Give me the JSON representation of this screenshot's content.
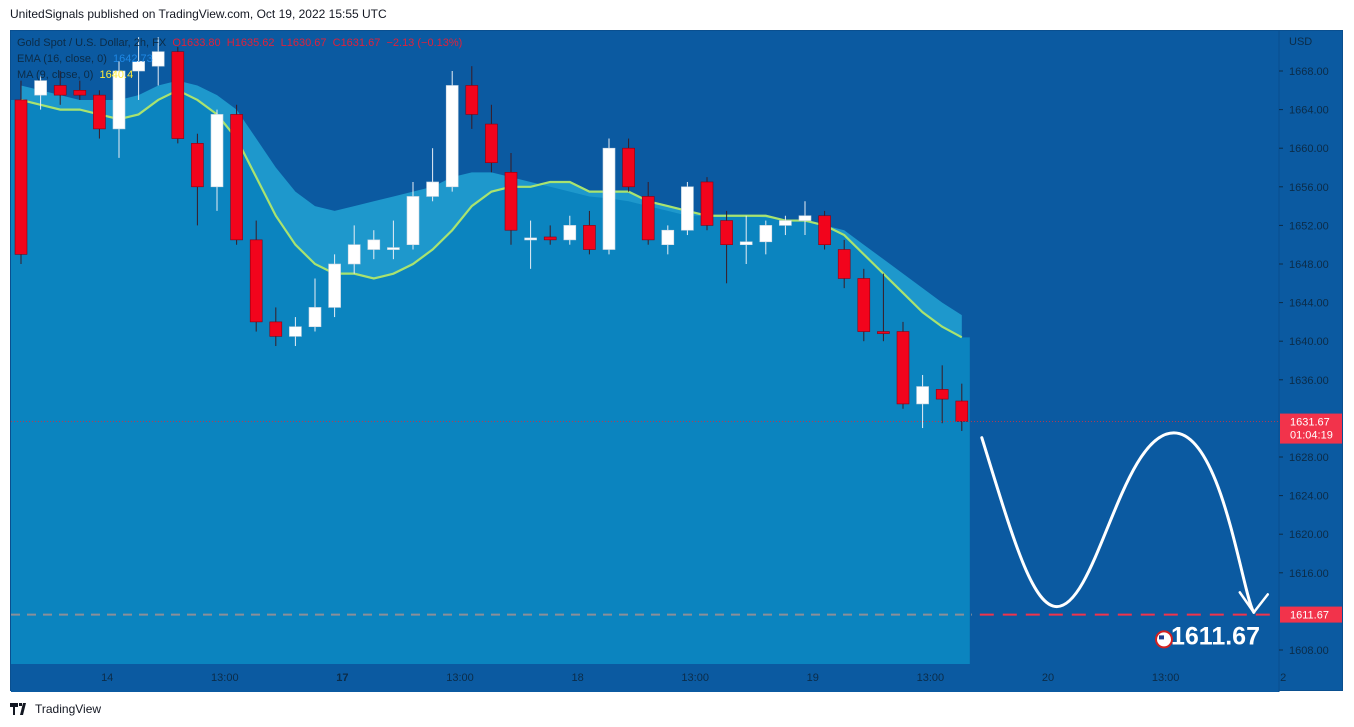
{
  "header": {
    "published_by": "UnitedSignals published on TradingView.com, Oct 19, 2022 15:55 UTC"
  },
  "legend": {
    "symbol": "Gold Spot / U.S. Dollar, 2h, FX",
    "open": "O1633.80",
    "high": "H1635.62",
    "low": "L1630.67",
    "close": "C1631.67",
    "change": "−2.13 (−0.13%)",
    "ema_label": "EMA (16, close, 0)",
    "ema_value": "1642.73",
    "ma_label": "MA (9, close, 0)",
    "ma_value": "1640.4"
  },
  "footer": {
    "brand": "TradingView"
  },
  "colors": {
    "background": "#0b5aa1",
    "area_fill": "#0b84bf",
    "band": "#1e98cc",
    "up_candle": "#ffffff",
    "down_candle": "#f2041c",
    "ma_line": "#a9e36f",
    "axis_text": "#0c2c48",
    "price_tag": "#f2334b",
    "annotation": "#ffffff"
  },
  "chart_data": {
    "type": "candlestick",
    "currency": "USD",
    "ylim": [
      1605.5,
      1673.0
    ],
    "y_ticks": [
      1608.0,
      1612.0,
      1616.0,
      1620.0,
      1624.0,
      1628.0,
      1632.0,
      1636.0,
      1640.0,
      1644.0,
      1648.0,
      1652.0,
      1656.0,
      1660.0,
      1664.0,
      1668.0
    ],
    "y_tick_labels": [
      "1608.00",
      "1616.00",
      "1620.00",
      "1624.00",
      "1628.00",
      "1636.00",
      "1640.00",
      "1644.00",
      "1648.00",
      "1652.00",
      "1656.00",
      "1660.00",
      "1664.00",
      "1668.00"
    ],
    "x_ticks": [
      {
        "bar": 4.5,
        "label": "14",
        "bold": false
      },
      {
        "bar": 10.5,
        "label": "13:00",
        "bold": false
      },
      {
        "bar": 16.5,
        "label": "17",
        "bold": true
      },
      {
        "bar": 22.5,
        "label": "13:00",
        "bold": false
      },
      {
        "bar": 28.5,
        "label": "18",
        "bold": false
      },
      {
        "bar": 34.5,
        "label": "13:00",
        "bold": false
      },
      {
        "bar": 40.5,
        "label": "19",
        "bold": false
      },
      {
        "bar": 46.5,
        "label": "13:00",
        "bold": false
      },
      {
        "bar": 52.5,
        "label": "20",
        "bold": false
      },
      {
        "bar": 58.5,
        "label": "13:00",
        "bold": false
      },
      {
        "bar": 64.5,
        "label": "2",
        "bold": false
      }
    ],
    "candles": [
      [
        1665.0,
        1667.0,
        1648.0,
        1649.0
      ],
      [
        1665.5,
        1667.5,
        1664.0,
        1667.0
      ],
      [
        1666.5,
        1668.0,
        1664.5,
        1665.5
      ],
      [
        1666.0,
        1667.0,
        1665.0,
        1665.5
      ],
      [
        1665.5,
        1666.0,
        1661.0,
        1662.0
      ],
      [
        1662.0,
        1669.0,
        1659.0,
        1668.0
      ],
      [
        1668.0,
        1671.5,
        1665.0,
        1669.0
      ],
      [
        1668.5,
        1671.5,
        1666.5,
        1670.0
      ],
      [
        1670.0,
        1670.5,
        1660.5,
        1661.0
      ],
      [
        1660.5,
        1661.5,
        1652.0,
        1656.0
      ],
      [
        1656.0,
        1664.0,
        1653.5,
        1663.5
      ],
      [
        1663.5,
        1664.5,
        1650.0,
        1650.5
      ],
      [
        1650.5,
        1652.5,
        1641.0,
        1642.0
      ],
      [
        1642.0,
        1643.5,
        1639.5,
        1640.5
      ],
      [
        1640.5,
        1642.5,
        1639.5,
        1641.5
      ],
      [
        1641.5,
        1646.5,
        1641.0,
        1643.5
      ],
      [
        1643.5,
        1649.0,
        1642.5,
        1648.0
      ],
      [
        1648.0,
        1652.0,
        1647.0,
        1650.0
      ],
      [
        1649.5,
        1651.5,
        1648.5,
        1650.5
      ],
      [
        1649.5,
        1652.5,
        1648.5,
        1649.7
      ],
      [
        1650.0,
        1656.5,
        1649.5,
        1655.0
      ],
      [
        1655.0,
        1660.0,
        1654.5,
        1656.5
      ],
      [
        1656.0,
        1668.0,
        1655.5,
        1666.5
      ],
      [
        1666.5,
        1668.5,
        1662.0,
        1663.5
      ],
      [
        1662.5,
        1664.5,
        1657.5,
        1658.5
      ],
      [
        1657.5,
        1659.5,
        1650.0,
        1651.5
      ],
      [
        1650.5,
        1652.5,
        1647.5,
        1650.7
      ],
      [
        1650.8,
        1652.0,
        1650.0,
        1650.5
      ],
      [
        1650.5,
        1653.0,
        1650.0,
        1652.0
      ],
      [
        1652.0,
        1653.5,
        1649.0,
        1649.5
      ],
      [
        1649.5,
        1661.0,
        1649.0,
        1660.0
      ],
      [
        1660.0,
        1661.0,
        1655.5,
        1656.0
      ],
      [
        1655.0,
        1656.5,
        1650.0,
        1650.5
      ],
      [
        1650.0,
        1652.0,
        1649.0,
        1651.5
      ],
      [
        1651.5,
        1656.5,
        1651.0,
        1656.0
      ],
      [
        1656.5,
        1657.0,
        1651.5,
        1652.0
      ],
      [
        1652.5,
        1653.5,
        1646.0,
        1650.0
      ],
      [
        1650.0,
        1653.0,
        1648.0,
        1650.3
      ],
      [
        1650.3,
        1652.5,
        1649.0,
        1652.0
      ],
      [
        1652.0,
        1653.0,
        1651.0,
        1652.5
      ],
      [
        1652.5,
        1654.5,
        1651.0,
        1653.0
      ],
      [
        1653.0,
        1653.5,
        1649.5,
        1650.0
      ],
      [
        1649.5,
        1650.5,
        1645.5,
        1646.5
      ],
      [
        1646.5,
        1647.5,
        1640.0,
        1641.0
      ],
      [
        1641.0,
        1647.0,
        1640.0,
        1640.8
      ],
      [
        1641.0,
        1642.0,
        1633.0,
        1633.5
      ],
      [
        1633.5,
        1636.5,
        1631.0,
        1635.3
      ],
      [
        1635.0,
        1637.5,
        1631.5,
        1634.0
      ],
      [
        1633.8,
        1635.6,
        1630.7,
        1631.7
      ]
    ],
    "ma_line": [
      1665.0,
      1664.5,
      1664.0,
      1664.0,
      1663.5,
      1663.0,
      1663.5,
      1665.0,
      1666.0,
      1665.0,
      1663.5,
      1661.0,
      1657.0,
      1653.0,
      1650.0,
      1648.0,
      1647.0,
      1647.0,
      1646.5,
      1647.0,
      1648.0,
      1649.5,
      1651.5,
      1654.0,
      1655.5,
      1656.0,
      1656.0,
      1656.5,
      1656.5,
      1655.5,
      1655.5,
      1655.5,
      1654.5,
      1654.0,
      1653.5,
      1653.0,
      1653.0,
      1653.0,
      1653.0,
      1652.5,
      1652.5,
      1652.0,
      1651.0,
      1649.0,
      1647.0,
      1645.0,
      1643.0,
      1641.5,
      1640.4
    ],
    "band_upper": [
      1666.5,
      1666.0,
      1665.5,
      1665.0,
      1665.0,
      1665.0,
      1665.5,
      1666.5,
      1667.0,
      1666.5,
      1665.5,
      1664.0,
      1661.0,
      1658.0,
      1655.5,
      1654.0,
      1653.5,
      1654.0,
      1654.5,
      1655.0,
      1655.5,
      1656.0,
      1657.0,
      1657.5,
      1657.5,
      1657.0,
      1656.5,
      1656.0,
      1655.5,
      1655.0,
      1654.8,
      1654.5,
      1654.0,
      1653.5,
      1653.0,
      1653.0,
      1653.0,
      1653.0,
      1652.8,
      1652.6,
      1652.5,
      1652.0,
      1651.5,
      1650.0,
      1648.5,
      1647.0,
      1645.5,
      1644.0,
      1642.7
    ],
    "price_last": "1631.67",
    "countdown": "01:04:19",
    "target_price": "1611.67",
    "annotation_text": "1611.67"
  }
}
